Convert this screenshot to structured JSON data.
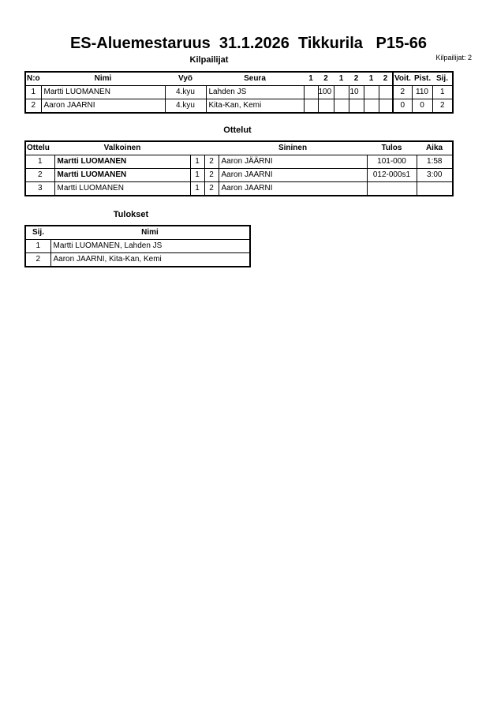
{
  "title": "ES-Aluemestaruus  31.1.2026  Tikkurila   P15-66",
  "competitors_section": {
    "heading": "Kilpailijat",
    "count_label": "Kilpailijat: 2",
    "headers": [
      "N:o",
      "Nimi",
      "Vyö",
      "Seura",
      "1",
      "2",
      "1",
      "2",
      "1",
      "2",
      "Voit.",
      "Pist.",
      "Sij."
    ],
    "rows": [
      {
        "no": "1",
        "name": "Martti LUOMANEN",
        "belt": "4.kyu",
        "club": "Lahden JS",
        "scores": [
          "",
          "100",
          "",
          "10",
          "",
          ""
        ],
        "wins": "2",
        "points": "110",
        "place": "1"
      },
      {
        "no": "2",
        "name": "Aaron JAARNI",
        "belt": "4.kyu",
        "club": "Kita-Kan, Kemi",
        "scores": [
          "",
          "",
          "",
          "",
          "",
          ""
        ],
        "wins": "0",
        "points": "0",
        "place": "2"
      }
    ]
  },
  "matches_section": {
    "heading": "Ottelut",
    "headers": [
      "Ottelu",
      "Valkoinen",
      "Sininen",
      "Tulos",
      "Aika"
    ],
    "rows": [
      {
        "no": "1",
        "white": "Martti LUOMANEN",
        "white_bold": true,
        "w": "1",
        "b": "2",
        "blue": "Aaron JÄÄRNI",
        "result": "101-000",
        "time": "1:58"
      },
      {
        "no": "2",
        "white": "Martti LUOMANEN",
        "white_bold": true,
        "w": "1",
        "b": "2",
        "blue": "Aaron JAARNI",
        "result": "012-000s1",
        "time": "3:00"
      },
      {
        "no": "3",
        "white": "Martti LUOMANEN",
        "white_bold": false,
        "w": "1",
        "b": "2",
        "blue": "Aaron JAARNI",
        "result": "",
        "time": ""
      }
    ]
  },
  "results_section": {
    "heading": "Tulokset",
    "headers": [
      "Sij.",
      "Nimi"
    ],
    "rows": [
      {
        "place": "1",
        "name": "Martti LUOMANEN, Lahden JS"
      },
      {
        "place": "2",
        "name": "Aaron JAARNI, Kita-Kan, Kemi"
      }
    ]
  }
}
